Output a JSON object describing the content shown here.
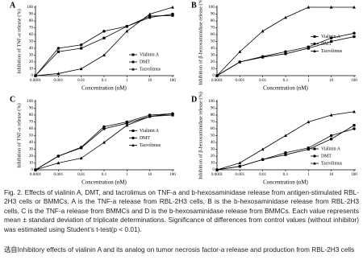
{
  "chart_data": [
    {
      "type": "line",
      "panel": "A",
      "ylabel": "Inhibition of TNF-α release (%)",
      "xlabel": "Concentration (nM)",
      "categories": [
        "0.0001",
        "0.001",
        "0.01",
        "0.1",
        "1",
        "10",
        "100"
      ],
      "ylim": [
        0,
        100
      ],
      "yticks": [
        0,
        10,
        20,
        30,
        40,
        50,
        60,
        70,
        80,
        90,
        100
      ],
      "legend": "lower right",
      "series": [
        {
          "name": "Vialinin A",
          "color": "#000000",
          "marker": "square",
          "values": [
            0,
            35,
            40,
            55,
            72,
            87,
            88
          ]
        },
        {
          "name": "DMT",
          "color": "#000000",
          "marker": "circle",
          "values": [
            0,
            40,
            45,
            65,
            72,
            85,
            90
          ]
        },
        {
          "name": "Tacrolimus",
          "color": "#000000",
          "marker": "triangle",
          "values": [
            0,
            3,
            10,
            30,
            65,
            90,
            100
          ]
        }
      ]
    },
    {
      "type": "line",
      "panel": "B",
      "ylabel": "Inhibition of β-hexosaminidase release (%)",
      "xlabel": "Concentration (nM)",
      "categories": [
        "0.0001",
        "0.001",
        "0.01",
        "0.1",
        "1",
        "10",
        "100"
      ],
      "ylim": [
        0,
        100
      ],
      "yticks": [
        0,
        10,
        20,
        30,
        40,
        50,
        60,
        70,
        80,
        90,
        100
      ],
      "legend": "center right",
      "series": [
        {
          "name": "Vialinin A",
          "color": "#000000",
          "marker": "square",
          "values": [
            0,
            20,
            27,
            32,
            40,
            50,
            57
          ]
        },
        {
          "name": "DMT",
          "color": "#000000",
          "marker": "circle",
          "values": [
            0,
            20,
            28,
            35,
            42,
            55,
            62
          ]
        },
        {
          "name": "Tacrolimus",
          "color": "#000000",
          "marker": "triangle",
          "values": [
            0,
            35,
            65,
            85,
            100,
            100,
            100
          ]
        }
      ]
    },
    {
      "type": "line",
      "panel": "C",
      "ylabel": "Inhibition of TNF-α release (%)",
      "xlabel": "Concentration (nM)",
      "categories": [
        "0.0001",
        "0.001",
        "0.01",
        "0.1",
        "1",
        "10",
        "100"
      ],
      "ylim": [
        0,
        100
      ],
      "yticks": [
        0,
        10,
        20,
        30,
        40,
        50,
        60,
        70,
        80,
        90,
        100
      ],
      "legend": "center right",
      "series": [
        {
          "name": "Vialinin A",
          "color": "#000000",
          "marker": "square",
          "values": [
            0,
            20,
            32,
            60,
            68,
            78,
            80
          ]
        },
        {
          "name": "DMT",
          "color": "#000000",
          "marker": "circle",
          "values": [
            0,
            20,
            33,
            63,
            70,
            80,
            82
          ]
        },
        {
          "name": "Tacrolimus",
          "color": "#000000",
          "marker": "triangle",
          "values": [
            0,
            10,
            17,
            40,
            65,
            78,
            82
          ]
        }
      ]
    },
    {
      "type": "line",
      "panel": "D",
      "ylabel": "Inhibition of β-hexosaminidase release (%)",
      "xlabel": "Concentration (nM)",
      "categories": [
        "0.0001",
        "0.001",
        "0.01",
        "0.1",
        "1",
        "10",
        "100"
      ],
      "ylim": [
        0,
        100
      ],
      "yticks": [
        0,
        10,
        20,
        30,
        40,
        50,
        60,
        70,
        80,
        90,
        100
      ],
      "legend": "lower right",
      "series": [
        {
          "name": "Vialinin A",
          "color": "#000000",
          "marker": "square",
          "values": [
            0,
            5,
            15,
            22,
            30,
            45,
            65
          ]
        },
        {
          "name": "DMT",
          "color": "#000000",
          "marker": "circle",
          "values": [
            0,
            5,
            15,
            25,
            32,
            50,
            60
          ]
        },
        {
          "name": "Tacrolimus",
          "color": "#000000",
          "marker": "triangle",
          "values": [
            0,
            10,
            30,
            50,
            70,
            80,
            85
          ]
        }
      ]
    }
  ],
  "caption": "Fig. 2. Effects of vialinin A, DMT, and tacrolimus on TNF-a and b-hexosaminidase release from antigen-stimulated RBL-2H3 cells or BMMCs. A is the TNF-a release from RBL-2H3 cells, B is the b-hexosaminidase release from RBL-2H3 cells, C is the TNF-a release from BMMCs and D is the b-hexosaminidase release from BMMCs. Each value represents mean ± standard deviation of triplicate determinations. Significance of differences from control values (without inhibitor) was estimated using Student’s t-test(p < 0.01).",
  "source_note": "选自Inhibitory effects of vialinin A and its analog on tumor necrosis factor-a release and production from RBL-2H3 cells"
}
